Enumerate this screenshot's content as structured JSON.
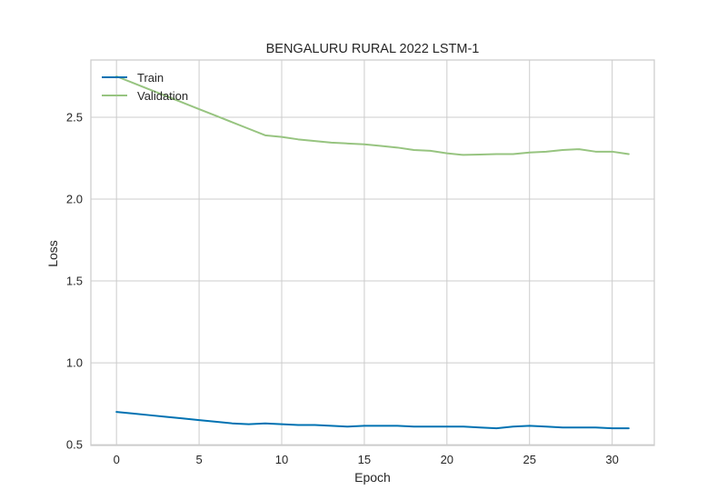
{
  "chart_data": {
    "type": "line",
    "title": "BENGALURU RURAL 2022 LSTM-1",
    "xlabel": "Epoch",
    "ylabel": "Loss",
    "xlim": [
      -1.55,
      32.55
    ],
    "ylim": [
      0.495,
      2.85
    ],
    "xticks": [
      0,
      5,
      10,
      15,
      20,
      25,
      30
    ],
    "xtick_labels": [
      "0",
      "5",
      "10",
      "15",
      "20",
      "25",
      "30"
    ],
    "yticks": [
      0.5,
      1.0,
      1.5,
      2.0,
      2.5
    ],
    "ytick_labels": [
      "0.5",
      "1.0",
      "1.5",
      "2.0",
      "2.5"
    ],
    "grid": true,
    "legend_position": "top-left",
    "x": [
      0,
      1,
      2,
      3,
      4,
      5,
      6,
      7,
      8,
      9,
      10,
      11,
      12,
      13,
      14,
      15,
      16,
      17,
      18,
      19,
      20,
      21,
      22,
      23,
      24,
      25,
      26,
      27,
      28,
      29,
      30,
      31
    ],
    "series": [
      {
        "name": "Train",
        "color": "#0072b2",
        "values": [
          0.7,
          0.69,
          0.68,
          0.67,
          0.66,
          0.65,
          0.64,
          0.63,
          0.625,
          0.63,
          0.625,
          0.62,
          0.62,
          0.615,
          0.61,
          0.615,
          0.615,
          0.615,
          0.61,
          0.61,
          0.61,
          0.61,
          0.605,
          0.6,
          0.61,
          0.615,
          0.61,
          0.605,
          0.605,
          0.605,
          0.6,
          0.6
        ]
      },
      {
        "name": "Validation",
        "color": "#97c480",
        "values": [
          2.75,
          2.71,
          2.67,
          2.63,
          2.59,
          2.55,
          2.51,
          2.47,
          2.43,
          2.39,
          2.38,
          2.365,
          2.355,
          2.345,
          2.34,
          2.335,
          2.325,
          2.315,
          2.3,
          2.295,
          2.28,
          2.27,
          2.272,
          2.275,
          2.275,
          2.285,
          2.29,
          2.3,
          2.305,
          2.29,
          2.29,
          2.275
        ]
      }
    ]
  }
}
